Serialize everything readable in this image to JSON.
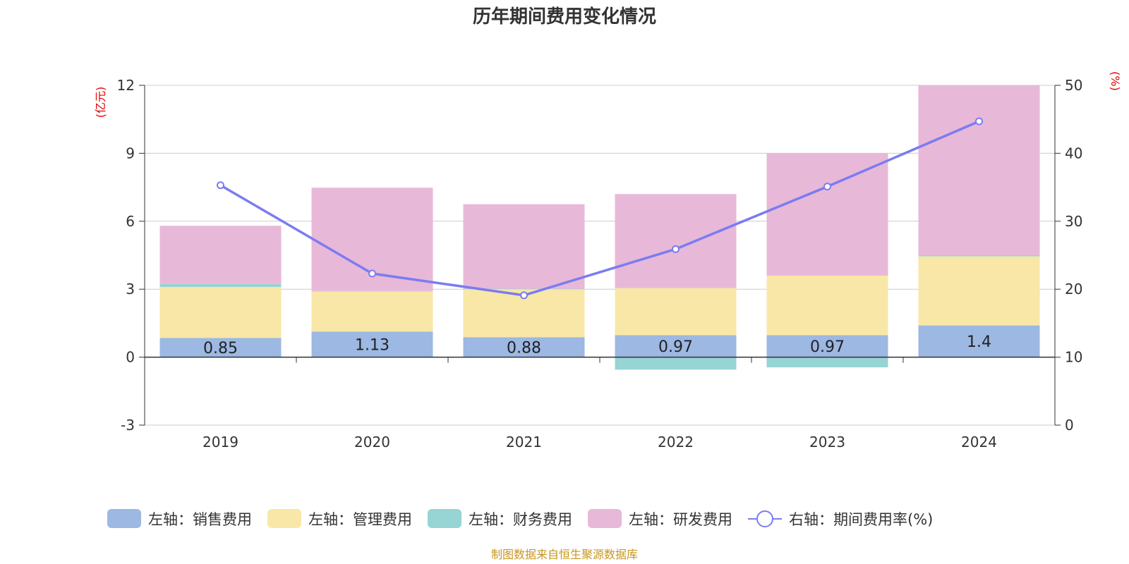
{
  "title": "历年期间费用变化情况",
  "source": "制图数据来自恒生聚源数据库",
  "colors": {
    "sales": "#9cb8e3",
    "admin": "#f8e7a6",
    "finance": "#97d4d4",
    "rnd": "#e8b8d9",
    "line": "#7b7cf0",
    "unit": "#e00000",
    "source": "#c8961e"
  },
  "chart_data": {
    "type": "bar",
    "stacked": true,
    "title": "历年期间费用变化情况",
    "categories": [
      "2019",
      "2020",
      "2021",
      "2022",
      "2023",
      "2024"
    ],
    "y_left": {
      "unit": "(亿元)",
      "lim": [
        -3,
        12
      ],
      "ticks": [
        -3,
        0,
        3,
        6,
        9,
        12
      ]
    },
    "y_right": {
      "unit": "(%)",
      "lim": [
        0,
        50
      ],
      "ticks": [
        0,
        10,
        20,
        30,
        40,
        50
      ]
    },
    "grid": true,
    "legend_position": "bottom",
    "series": [
      {
        "name": "左轴：销售费用",
        "key": "sales",
        "axis": "left",
        "type": "bar",
        "values": [
          0.85,
          1.13,
          0.88,
          0.97,
          0.97,
          1.4
        ],
        "labels": [
          "0.85",
          "1.13",
          "0.88",
          "0.97",
          "0.97",
          "1.4"
        ]
      },
      {
        "name": "左轴：管理费用",
        "key": "admin",
        "axis": "left",
        "type": "bar",
        "values": [
          2.25,
          1.77,
          2.12,
          2.08,
          2.63,
          3.05
        ]
      },
      {
        "name": "左轴：财务费用",
        "key": "finance",
        "axis": "left",
        "type": "bar",
        "values": [
          0.13,
          0.02,
          0.02,
          -0.55,
          -0.45,
          0.05
        ]
      },
      {
        "name": "左轴：研发费用",
        "key": "rnd",
        "axis": "left",
        "type": "bar",
        "values": [
          2.57,
          4.56,
          3.73,
          4.15,
          5.4,
          7.5
        ]
      },
      {
        "name": "右轴：期间费用率(%)",
        "key": "line",
        "axis": "right",
        "type": "line",
        "values": [
          35.3,
          22.3,
          19.1,
          25.9,
          35.1,
          44.7
        ]
      }
    ]
  }
}
